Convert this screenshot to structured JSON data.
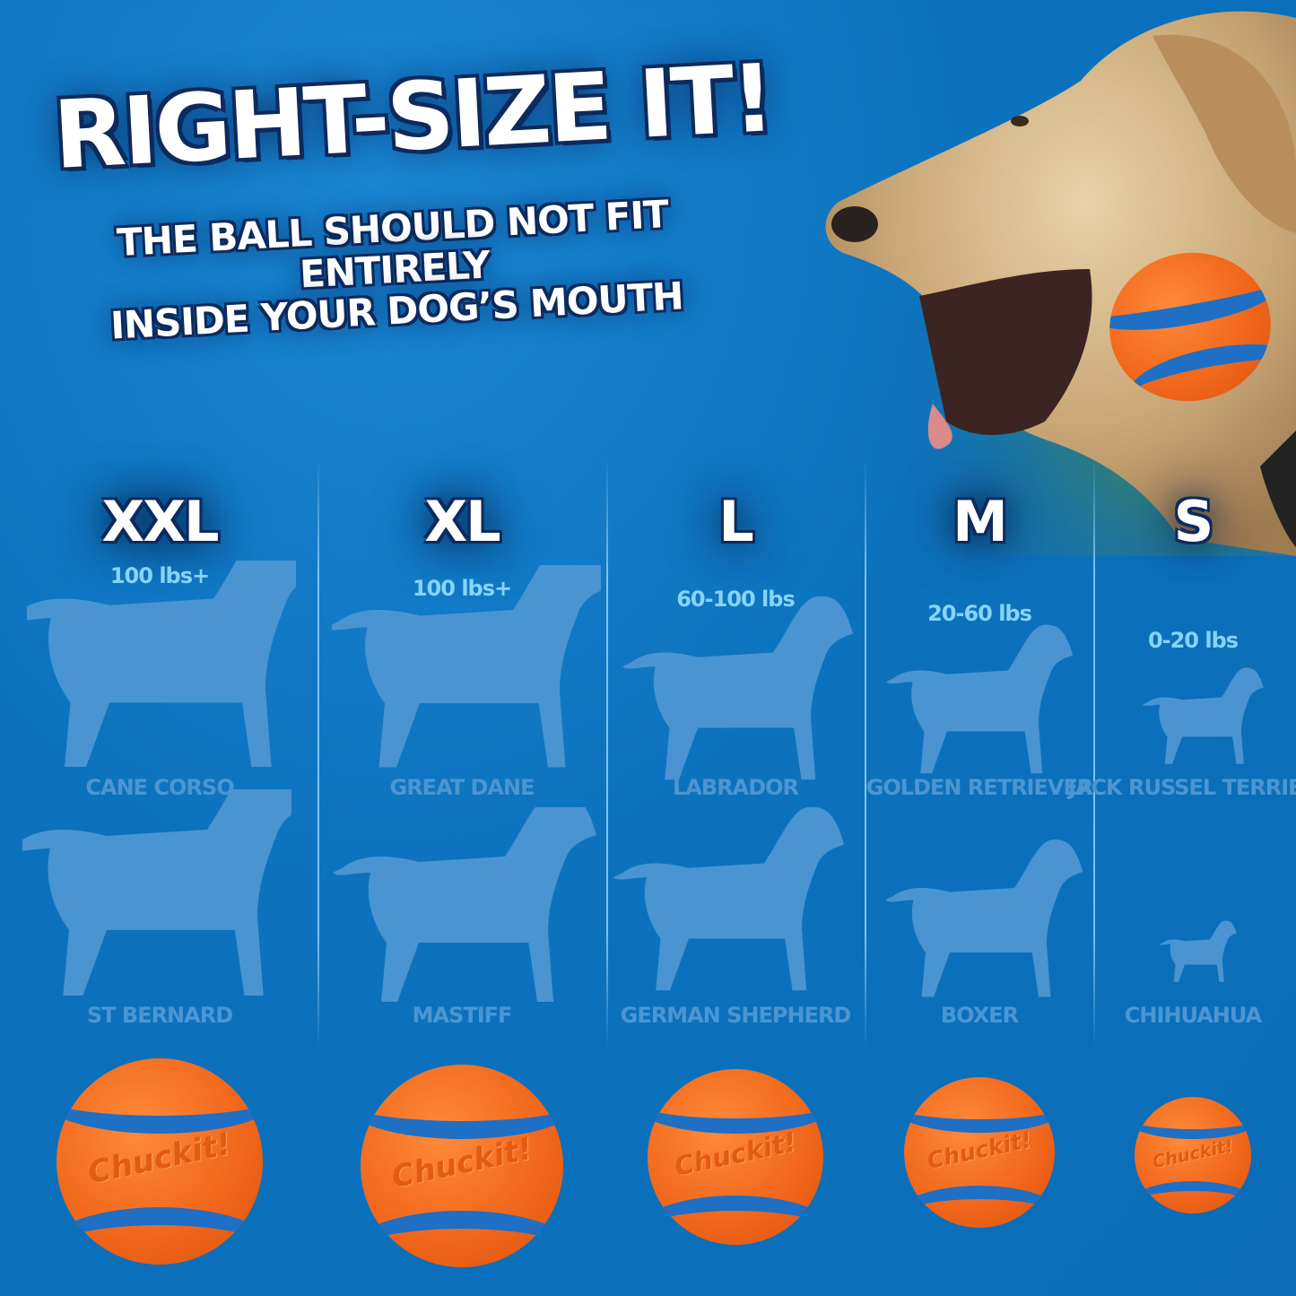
{
  "headline": {
    "title": "RIGHT-SIZE IT!",
    "subtitle_line1": "THE BALL SHOULD NOT FIT ENTIRELY",
    "subtitle_line2": "INSIDE YOUR DOG’S MOUTH"
  },
  "brand": "Chuckit!",
  "colors": {
    "background": "#0c72be",
    "silhouette": "#4a94d2",
    "weight_text": "#86d4f7",
    "ball_orange": "#f0651a",
    "ball_blue": "#1f6fc4"
  },
  "columns": [
    {
      "size": "XXL",
      "weight": "100 lbs+",
      "breed1": "CANE CORSO",
      "breed2": "ST BERNARD"
    },
    {
      "size": "XL",
      "weight": "100 lbs+",
      "breed1": "GREAT DANE",
      "breed2": "MASTIFF"
    },
    {
      "size": "L",
      "weight": "60-100 lbs",
      "breed1": "LABRADOR",
      "breed2": "GERMAN SHEPHERD"
    },
    {
      "size": "M",
      "weight": "20-60 lbs",
      "breed1": "GOLDEN RETRIEVER",
      "breed2": "BOXER"
    },
    {
      "size": "S",
      "weight": "0-20 lbs",
      "breed1": "JACK RUSSEL TERRIER",
      "breed2": "CHIHUAHUA"
    }
  ]
}
